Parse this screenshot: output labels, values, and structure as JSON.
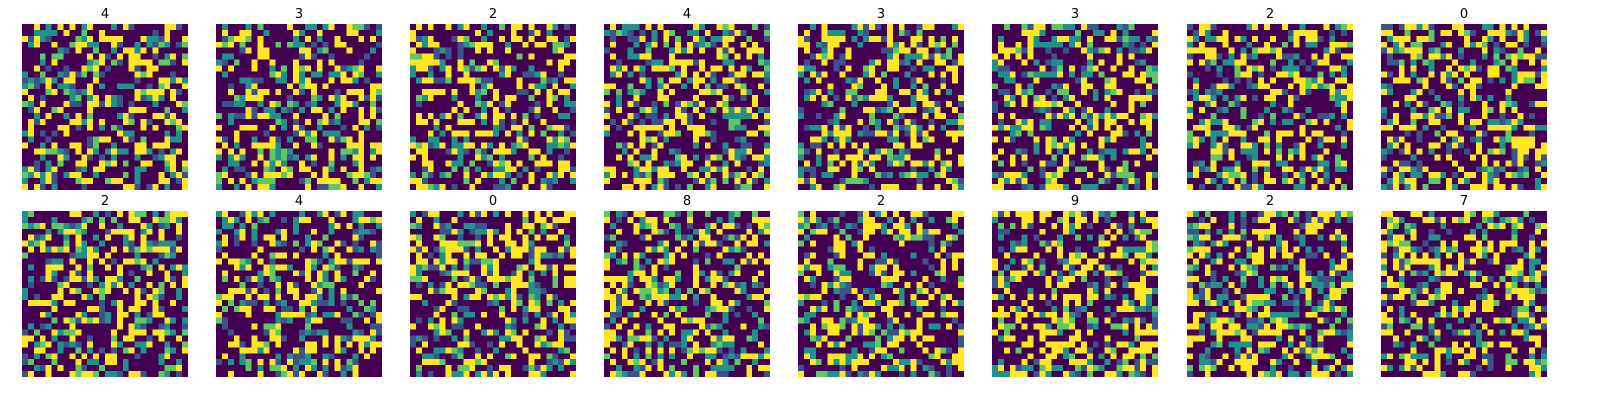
{
  "chart_data": {
    "type": "heatmap",
    "layout": {
      "rows": 2,
      "cols": 8
    },
    "grid_size": 28,
    "value_range": [
      0,
      1
    ],
    "colormap": "viridis",
    "colormap_stops": [
      "#440154",
      "#3b528b",
      "#21918c",
      "#5ec962",
      "#fde725"
    ],
    "axes_visible": false,
    "panels": [
      {
        "title": "4",
        "seed": 101
      },
      {
        "title": "3",
        "seed": 202
      },
      {
        "title": "2",
        "seed": 303
      },
      {
        "title": "4",
        "seed": 404
      },
      {
        "title": "3",
        "seed": 505
      },
      {
        "title": "3",
        "seed": 606
      },
      {
        "title": "2",
        "seed": 707
      },
      {
        "title": "0",
        "seed": 808
      },
      {
        "title": "2",
        "seed": 909
      },
      {
        "title": "4",
        "seed": 1010
      },
      {
        "title": "0",
        "seed": 1111
      },
      {
        "title": "8",
        "seed": 1212
      },
      {
        "title": "2",
        "seed": 1313
      },
      {
        "title": "9",
        "seed": 1414
      },
      {
        "title": "2",
        "seed": 1515
      },
      {
        "title": "7",
        "seed": 1616
      }
    ]
  }
}
